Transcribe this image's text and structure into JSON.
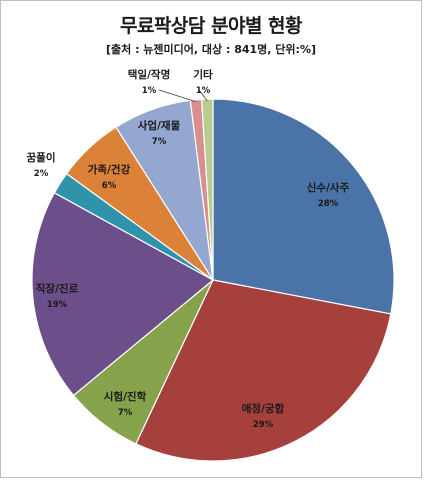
{
  "chart_data": {
    "type": "pie",
    "title": "무료팍상담 분야별 현황",
    "subtitle": "[출처 : 뉴젠미디어, 대상 : 841명, 단위:%]",
    "slices": [
      {
        "label": "신수/사주",
        "value": 28,
        "value_label": "28%",
        "color": "#4A73A8"
      },
      {
        "label": "애정/궁합",
        "value": 29,
        "value_label": "29%",
        "color": "#A6403C"
      },
      {
        "label": "시험/진학",
        "value": 7,
        "value_label": "7%",
        "color": "#86A24A"
      },
      {
        "label": "직장/진로",
        "value": 19,
        "value_label": "19%",
        "color": "#6B4E8A"
      },
      {
        "label": "꿈풀이",
        "value": 2,
        "value_label": "2%",
        "color": "#2F93AC"
      },
      {
        "label": "가족/건강",
        "value": 6,
        "value_label": "6%",
        "color": "#DC8138"
      },
      {
        "label": "사업/재물",
        "value": 7,
        "value_label": "7%",
        "color": "#93A7D1"
      },
      {
        "label": "택일/작명",
        "value": 1,
        "value_label": "1%",
        "color": "#D88F8D"
      },
      {
        "label": "기타",
        "value": 1,
        "value_label": "1%",
        "color": "#B9CE8E"
      }
    ]
  }
}
